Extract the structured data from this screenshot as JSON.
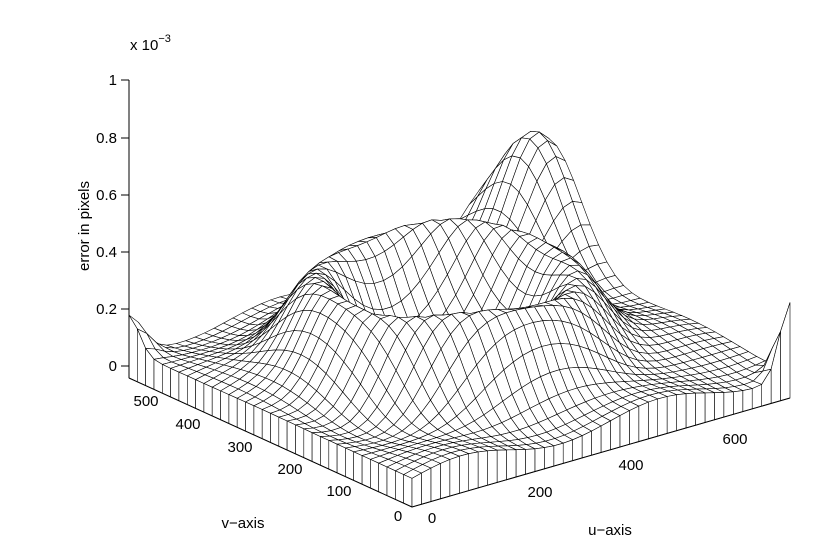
{
  "chart_data": {
    "type": "surface",
    "zlabel": "error in pixels",
    "xlabel": "u−axis",
    "ylabel": "v−axis",
    "z_scale_label": "x 10",
    "z_scale_exponent": "−3",
    "z_ticks": [
      "0",
      "0.2",
      "0.4",
      "0.6",
      "0.8",
      "1"
    ],
    "u_ticks": [
      "0",
      "200",
      "400",
      "600"
    ],
    "v_ticks": [
      "0",
      "100",
      "200",
      "300",
      "400",
      "500"
    ],
    "u_range": [
      0,
      680
    ],
    "v_range": [
      0,
      520
    ],
    "z_range": [
      0,
      1
    ],
    "z_units_multiplier": 0.001,
    "grid_u": 40,
    "grid_v": 34,
    "features": {
      "central_peak": 0.3,
      "back_corner_peak": 0.58,
      "corner_spike": 0.3,
      "edge_height": 0.22
    },
    "grid": false,
    "legend": "none"
  }
}
